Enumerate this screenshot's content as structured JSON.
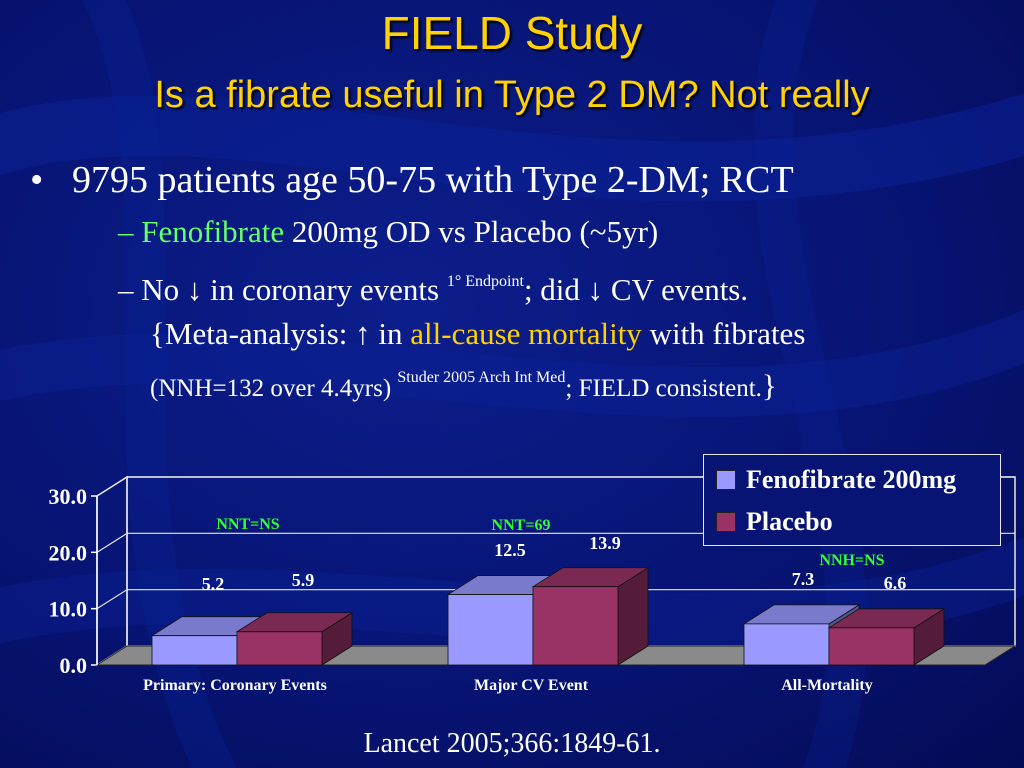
{
  "title": "FIELD Study",
  "subtitle": "Is a fibrate useful in Type 2 DM?  Not really",
  "bullets": {
    "b1": "9795 patients age 50-75 with Type 2-DM; RCT",
    "b2_dash": "–",
    "b2_green": "Fenofibrate",
    "b2_rest": " 200mg OD vs Placebo (~5yr)",
    "b3_a": "– No ",
    "down_arrow": "↓",
    "b3_b": " in coronary events ",
    "b3_sup1": "1° Endpoint",
    "b3_c": "; did ",
    "b3_d": " CV events.",
    "b3_e": "{Meta-analysis: ",
    "up_arrow": "↑",
    "b3_f": " in ",
    "b3_yellow": "all-cause mortality",
    "b3_g": " with fibrates",
    "b3_h": "(NNH=132 over 4.4yrs) ",
    "b3_sup2": "Studer 2005 Arch Int Med",
    "b3_i": "; FIELD consistent.",
    "b3_j": "}"
  },
  "citation": "Lancet 2005;366:1849-61.",
  "chart_data": {
    "type": "bar",
    "categories": [
      "Primary: Coronary Events",
      "Major CV Event",
      "All-Mortality"
    ],
    "series": [
      {
        "name": "Fenofibrate 200mg",
        "values": [
          5.2,
          12.5,
          7.3
        ],
        "value_labels": [
          "5.2",
          "12.5",
          "7.3"
        ],
        "color": "#9999ff"
      },
      {
        "name": "Placebo",
        "values": [
          5.9,
          13.9,
          6.6
        ],
        "value_labels": [
          "5.9",
          "13.9",
          "6.6"
        ],
        "color": "#993366"
      }
    ],
    "annotations": [
      "NNT=NS",
      "NNT=69",
      "NNH=NS"
    ],
    "yticks": [
      "0.0",
      "10.0",
      "20.0",
      "30.0"
    ],
    "ylim": [
      0,
      30
    ],
    "legend": "top-right",
    "grid": true
  },
  "colors": {
    "title": "#ffd200",
    "green": "#66ff66",
    "annotation": "#33ff33"
  }
}
